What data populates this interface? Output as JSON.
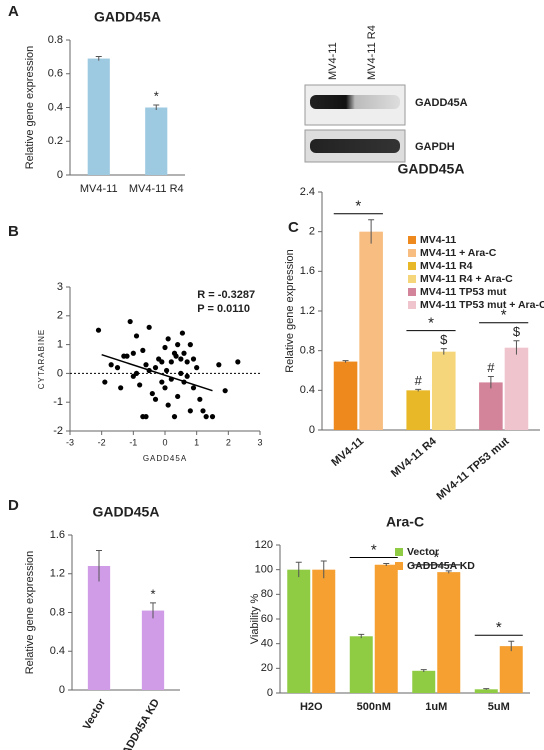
{
  "panels": [
    "A",
    "B",
    "C",
    "D"
  ],
  "blot": {
    "lanes": [
      "MV4-11",
      "MV4-11 R4"
    ],
    "bands": [
      "GADD45A",
      "GAPDH"
    ]
  },
  "chart_data": [
    {
      "type": "bar",
      "title": "GADD45A",
      "y_label": "Relative gene expression",
      "categories": [
        "MV4-11",
        "MV4-11 R4"
      ],
      "values": [
        0.69,
        0.4
      ],
      "errors": [
        0.012,
        0.015
      ],
      "annotations": [
        null,
        "*"
      ],
      "color": "#9ecae1",
      "ylim": [
        0,
        0.8
      ],
      "yticks": [
        0,
        0.2,
        0.4,
        0.6,
        0.8
      ]
    },
    {
      "type": "scatter",
      "x_label": "GADD45A",
      "y_label": "CYTARABINE",
      "annotation_lines": [
        "R = -0.3287",
        "P = 0.0110"
      ],
      "color": "#000000",
      "x": [
        -2.1,
        -1.9,
        -1.7,
        -1.5,
        -1.4,
        -1.3,
        -1.2,
        -1.1,
        -1.0,
        -1.0,
        -0.9,
        -0.9,
        -0.8,
        -0.7,
        -0.7,
        -0.6,
        -0.6,
        -0.5,
        -0.5,
        -0.4,
        -0.3,
        -0.3,
        -0.2,
        -0.1,
        0.0,
        0.0,
        0.05,
        0.1,
        0.1,
        0.2,
        0.2,
        0.3,
        0.3,
        0.35,
        0.4,
        0.4,
        0.5,
        0.5,
        0.55,
        0.6,
        0.6,
        0.7,
        0.7,
        0.8,
        0.8,
        0.9,
        1.0,
        1.1,
        1.2,
        1.3,
        1.5,
        1.7,
        1.9,
        2.3,
        -0.1,
        0.9
      ],
      "y": [
        1.5,
        -0.3,
        0.3,
        0.2,
        -0.5,
        0.6,
        0.6,
        1.8,
        0.7,
        -0.1,
        1.3,
        0.0,
        -0.4,
        0.8,
        -1.5,
        0.3,
        -1.5,
        1.6,
        0.1,
        -0.7,
        0.2,
        -0.9,
        0.5,
        -0.3,
        0.9,
        -0.5,
        0.1,
        1.2,
        -1.1,
        0.4,
        -0.2,
        0.7,
        -1.5,
        0.6,
        1.0,
        -0.8,
        0.5,
        0.0,
        1.4,
        -0.3,
        0.7,
        0.4,
        -0.1,
        1.0,
        -1.3,
        0.5,
        0.2,
        -0.9,
        -1.3,
        -1.5,
        -1.5,
        0.3,
        -0.6,
        0.4,
        0.4,
        -0.5
      ],
      "trendline": {
        "x": [
          -2.0,
          1.5
        ],
        "y": [
          0.65,
          -0.6
        ]
      },
      "hline": 0,
      "xlim": [
        -3,
        3
      ],
      "xticks": [
        -3,
        -2,
        -1,
        0,
        1,
        2,
        3
      ],
      "ylim": [
        -2,
        3
      ],
      "yticks": [
        -2,
        -1,
        0,
        1,
        2,
        3
      ]
    },
    {
      "type": "grouped_bar",
      "title": "GADD45A",
      "y_label": "Relative gene expression",
      "categories": [
        "MV4-11",
        "MV4-11 R4",
        "MV4-11 TP53 mut"
      ],
      "brackets": [
        "*",
        "*",
        "*"
      ],
      "series": [
        {
          "name": "MV4-11",
          "color": "#ee8a1d",
          "values": [
            0.69,
            null,
            null
          ],
          "errors": [
            0.01,
            null,
            null
          ],
          "annotations": [
            null,
            null,
            null
          ]
        },
        {
          "name": "MV4-11 + Ara-C",
          "color": "#f8bd80",
          "values": [
            2.0,
            null,
            null
          ],
          "errors": [
            0.12,
            null,
            null
          ],
          "annotations": [
            null,
            null,
            null
          ]
        },
        {
          "name": "MV4-11 R4",
          "color": "#e8b828",
          "values": [
            null,
            0.4,
            null
          ],
          "errors": [
            null,
            0.01,
            null
          ],
          "annotations": [
            null,
            "#",
            null
          ]
        },
        {
          "name": "MV4-11 R4 + Ara-C",
          "color": "#f5d67a",
          "values": [
            null,
            0.79,
            null
          ],
          "errors": [
            null,
            0.03,
            null
          ],
          "annotations": [
            null,
            "$",
            null
          ]
        },
        {
          "name": "MV4-11 TP53 mut",
          "color": "#d4849a",
          "values": [
            null,
            null,
            0.48
          ],
          "errors": [
            null,
            null,
            0.06
          ],
          "annotations": [
            null,
            null,
            "#"
          ]
        },
        {
          "name": "MV4-11 TP53 mut + Ara-C",
          "color": "#f0c4cc",
          "values": [
            null,
            null,
            0.83
          ],
          "errors": [
            null,
            null,
            0.07
          ],
          "annotations": [
            null,
            null,
            "$"
          ]
        }
      ],
      "ylim": [
        0,
        2.4
      ],
      "yticks": [
        0,
        0.4,
        0.8,
        1.2,
        1.6,
        2,
        2.4
      ]
    },
    {
      "type": "bar",
      "title": "GADD45A",
      "y_label": "Relative gene expression",
      "categories": [
        "Vector",
        "GADD45A KD"
      ],
      "values": [
        1.28,
        0.82
      ],
      "errors": [
        0.16,
        0.08
      ],
      "annotations": [
        null,
        "*"
      ],
      "color": "#d09ce8",
      "ylim": [
        0,
        1.6
      ],
      "yticks": [
        0,
        0.4,
        0.8,
        1.2,
        1.6
      ]
    },
    {
      "type": "grouped_bar",
      "title": "Ara-C",
      "y_label": "Viability %",
      "categories": [
        "H2O",
        "500nM",
        "1uM",
        "5uM"
      ],
      "brackets": [
        null,
        "*",
        "*",
        "*"
      ],
      "series": [
        {
          "name": "Vector",
          "color": "#8fcc44",
          "values": [
            100,
            46,
            18,
            3
          ],
          "errors": [
            6,
            1.5,
            1,
            0.5
          ]
        },
        {
          "name": "GADD45A KD",
          "color": "#f5a030",
          "values": [
            100,
            104,
            98,
            38
          ],
          "errors": [
            7,
            1,
            1,
            4
          ]
        }
      ],
      "ylim": [
        0,
        120
      ],
      "yticks": [
        0,
        20,
        40,
        60,
        80,
        100,
        120
      ]
    }
  ]
}
